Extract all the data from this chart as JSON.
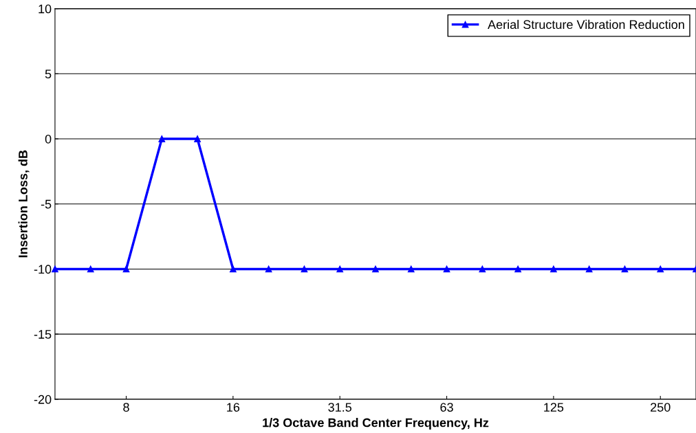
{
  "chart_data": {
    "type": "line",
    "xlabel": "1/3 Octave Band Center Frequency, Hz",
    "ylabel": "Insertion Loss, dB",
    "categories": [
      null,
      null,
      "8",
      null,
      null,
      "16",
      null,
      null,
      "31.5",
      null,
      null,
      "63",
      null,
      null,
      "125",
      null,
      null,
      "250",
      null
    ],
    "series": [
      {
        "name": "Aerial Structure Vibration Reduction",
        "color": "#0000ff",
        "values": [
          -10,
          -10,
          -10,
          0,
          0,
          -10,
          -10,
          -10,
          -10,
          -10,
          -10,
          -10,
          -10,
          -10,
          -10,
          -10,
          -10,
          -10,
          -10
        ]
      }
    ],
    "ylim": [
      -20,
      10
    ],
    "yticks": [
      -20,
      -15,
      -10,
      -5,
      0,
      5,
      10
    ],
    "grid": "y",
    "legend": "top right",
    "marker": "triangle",
    "line_style": "solid"
  }
}
